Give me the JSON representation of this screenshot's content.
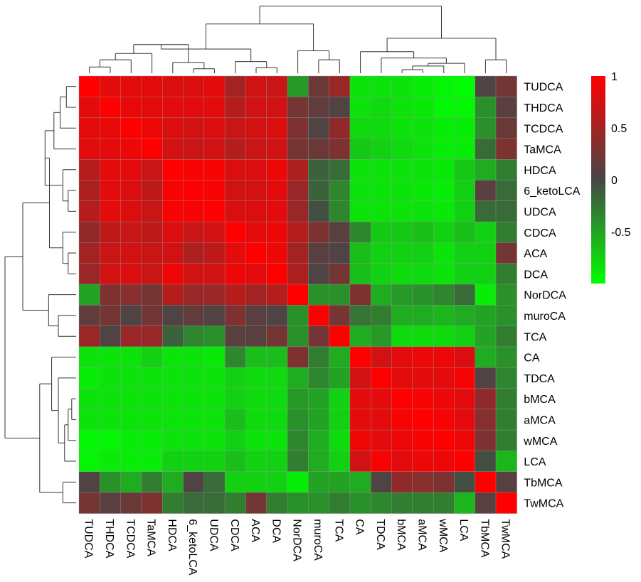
{
  "chart_data": {
    "type": "heatmap",
    "variables": [
      "TUDCA",
      "THDCA",
      "TCDCA",
      "TaMCA",
      "HDCA",
      "6_ketoLCA",
      "UDCA",
      "CDCA",
      "ACA",
      "DCA",
      "NorDCA",
      "muroCA",
      "TCA",
      "CA",
      "TDCA",
      "bMCA",
      "aMCA",
      "wMCA",
      "LCA",
      "TbMCA",
      "TwMCA"
    ],
    "matrix": [
      [
        1.0,
        0.85,
        0.85,
        0.85,
        0.8,
        0.8,
        0.85,
        0.5,
        0.75,
        0.7,
        -0.45,
        0.2,
        0.45,
        -0.85,
        -0.85,
        -0.85,
        -0.9,
        -0.95,
        -0.98,
        0.05,
        0.25
      ],
      [
        0.85,
        1.0,
        0.88,
        0.85,
        0.85,
        0.85,
        0.85,
        0.6,
        0.75,
        0.75,
        0.25,
        0.15,
        0.05,
        -0.85,
        -0.8,
        -0.85,
        -0.88,
        -0.95,
        -0.95,
        -0.4,
        0.1
      ],
      [
        0.85,
        0.88,
        1.0,
        0.9,
        0.8,
        0.75,
        0.8,
        0.7,
        0.75,
        0.8,
        0.3,
        0.05,
        0.4,
        -0.8,
        -0.8,
        -0.85,
        -0.85,
        -0.9,
        -0.9,
        -0.4,
        0.2
      ],
      [
        0.85,
        0.85,
        0.9,
        1.0,
        0.75,
        0.7,
        0.75,
        0.6,
        0.7,
        0.75,
        0.25,
        0.2,
        0.3,
        -0.7,
        -0.75,
        -0.8,
        -0.85,
        -0.9,
        -0.9,
        -0.2,
        0.3
      ],
      [
        0.6,
        0.85,
        0.85,
        0.7,
        1.0,
        0.95,
        0.95,
        0.8,
        0.8,
        0.9,
        0.55,
        -0.15,
        -0.2,
        -0.85,
        -0.85,
        -0.85,
        -0.85,
        -0.88,
        -0.7,
        -0.55,
        -0.3
      ],
      [
        0.55,
        0.85,
        0.8,
        0.65,
        0.95,
        1.0,
        0.95,
        0.75,
        0.75,
        0.85,
        0.45,
        -0.15,
        -0.35,
        -0.85,
        -0.85,
        -0.85,
        -0.88,
        -0.9,
        -0.75,
        0.1,
        -0.2
      ],
      [
        0.6,
        0.85,
        0.8,
        0.7,
        0.95,
        0.95,
        1.0,
        0.8,
        0.8,
        0.85,
        0.45,
        -0.05,
        -0.35,
        -0.85,
        -0.85,
        -0.85,
        -0.85,
        -0.88,
        -0.75,
        -0.2,
        -0.2
      ],
      [
        0.4,
        0.65,
        0.7,
        0.65,
        0.8,
        0.7,
        0.75,
        1.0,
        0.85,
        0.9,
        0.6,
        0.3,
        0.1,
        -0.35,
        -0.7,
        -0.7,
        -0.65,
        -0.75,
        -0.65,
        -0.75,
        -0.3
      ],
      [
        0.5,
        0.7,
        0.75,
        0.7,
        0.75,
        0.55,
        0.65,
        0.85,
        1.0,
        0.9,
        0.5,
        0.1,
        0.05,
        -0.65,
        -0.75,
        -0.75,
        -0.75,
        -0.85,
        -0.75,
        -0.75,
        0.25
      ],
      [
        0.45,
        0.75,
        0.8,
        0.7,
        0.9,
        0.75,
        0.75,
        0.9,
        0.85,
        1.0,
        0.55,
        0.05,
        0.25,
        -0.65,
        -0.75,
        -0.8,
        -0.8,
        -0.85,
        -0.75,
        -0.75,
        -0.3
      ],
      [
        -0.5,
        0.3,
        0.35,
        0.25,
        0.6,
        0.45,
        0.45,
        0.6,
        0.5,
        0.6,
        1.0,
        -0.4,
        -0.4,
        0.3,
        -0.55,
        -0.45,
        -0.4,
        -0.35,
        -0.2,
        -0.9,
        -0.4
      ],
      [
        0.15,
        0.25,
        0.05,
        0.25,
        0.05,
        0.15,
        0.05,
        0.3,
        0.1,
        0.05,
        -0.4,
        1.0,
        0.25,
        -0.25,
        -0.3,
        -0.55,
        -0.55,
        -0.6,
        -0.55,
        -0.5,
        -0.4
      ],
      [
        0.45,
        0.05,
        0.45,
        0.45,
        -0.15,
        -0.35,
        -0.4,
        0.1,
        0.1,
        0.25,
        -0.4,
        0.25,
        1.0,
        -0.55,
        -0.45,
        -0.8,
        -0.8,
        -0.8,
        -0.75,
        -0.5,
        -0.3
      ],
      [
        -0.85,
        -0.85,
        -0.85,
        -0.75,
        -0.85,
        -0.85,
        -0.88,
        -0.35,
        -0.65,
        -0.65,
        0.3,
        -0.3,
        -0.55,
        1.0,
        0.75,
        0.85,
        0.9,
        0.9,
        0.8,
        -0.55,
        -0.4
      ],
      [
        -0.9,
        -0.85,
        -0.85,
        -0.85,
        -0.85,
        -0.85,
        -0.85,
        -0.75,
        -0.8,
        -0.8,
        -0.55,
        -0.35,
        -0.5,
        0.75,
        1.0,
        0.85,
        0.85,
        0.85,
        0.95,
        0.05,
        -0.35
      ],
      [
        -0.85,
        -0.85,
        -0.85,
        -0.85,
        -0.85,
        -0.85,
        -0.85,
        -0.75,
        -0.8,
        -0.8,
        -0.45,
        -0.5,
        -0.75,
        0.85,
        0.85,
        1.0,
        0.95,
        0.9,
        0.85,
        0.4,
        -0.3
      ],
      [
        -0.85,
        -0.85,
        -0.85,
        -0.85,
        -0.85,
        -0.85,
        -0.85,
        -0.65,
        -0.8,
        -0.8,
        -0.4,
        -0.5,
        -0.75,
        0.85,
        0.85,
        0.95,
        1.0,
        0.95,
        0.85,
        0.35,
        -0.3
      ],
      [
        -0.95,
        -0.95,
        -0.9,
        -0.9,
        -0.85,
        -0.85,
        -0.85,
        -0.75,
        -0.85,
        -0.85,
        -0.35,
        -0.55,
        -0.8,
        0.9,
        0.85,
        0.9,
        0.95,
        1.0,
        0.9,
        0.3,
        -0.3
      ],
      [
        -0.95,
        -0.9,
        -0.9,
        -0.9,
        -0.75,
        -0.75,
        -0.75,
        -0.65,
        -0.75,
        -0.75,
        -0.3,
        -0.55,
        -0.75,
        0.75,
        0.95,
        0.85,
        0.9,
        0.9,
        1.0,
        -0.05,
        -0.6
      ],
      [
        0.05,
        -0.4,
        -0.55,
        -0.3,
        -0.55,
        0.05,
        -0.2,
        -0.75,
        -0.75,
        -0.75,
        -0.9,
        -0.5,
        -0.5,
        -0.55,
        0.05,
        0.4,
        0.35,
        0.3,
        -0.05,
        1.0,
        0.1
      ],
      [
        0.25,
        0.1,
        0.2,
        0.3,
        -0.3,
        -0.2,
        -0.2,
        -0.3,
        0.25,
        -0.3,
        -0.4,
        -0.4,
        -0.3,
        -0.4,
        -0.35,
        -0.3,
        -0.3,
        -0.3,
        -0.6,
        0.1,
        1.0
      ]
    ],
    "legend": {
      "ticks": [
        {
          "value": 1,
          "label": "1"
        },
        {
          "value": 0.5,
          "label": "0.5"
        },
        {
          "value": 0,
          "label": "0"
        },
        {
          "value": -0.5,
          "label": "-0.5"
        }
      ],
      "range": [
        -1,
        1
      ]
    },
    "colors": {
      "low": "#00ff00",
      "mid": "#464646",
      "high": "#ff0000"
    },
    "dendrogram": "hierarchical clustering on rows and columns (identical order)",
    "legend_position": "top-right"
  }
}
